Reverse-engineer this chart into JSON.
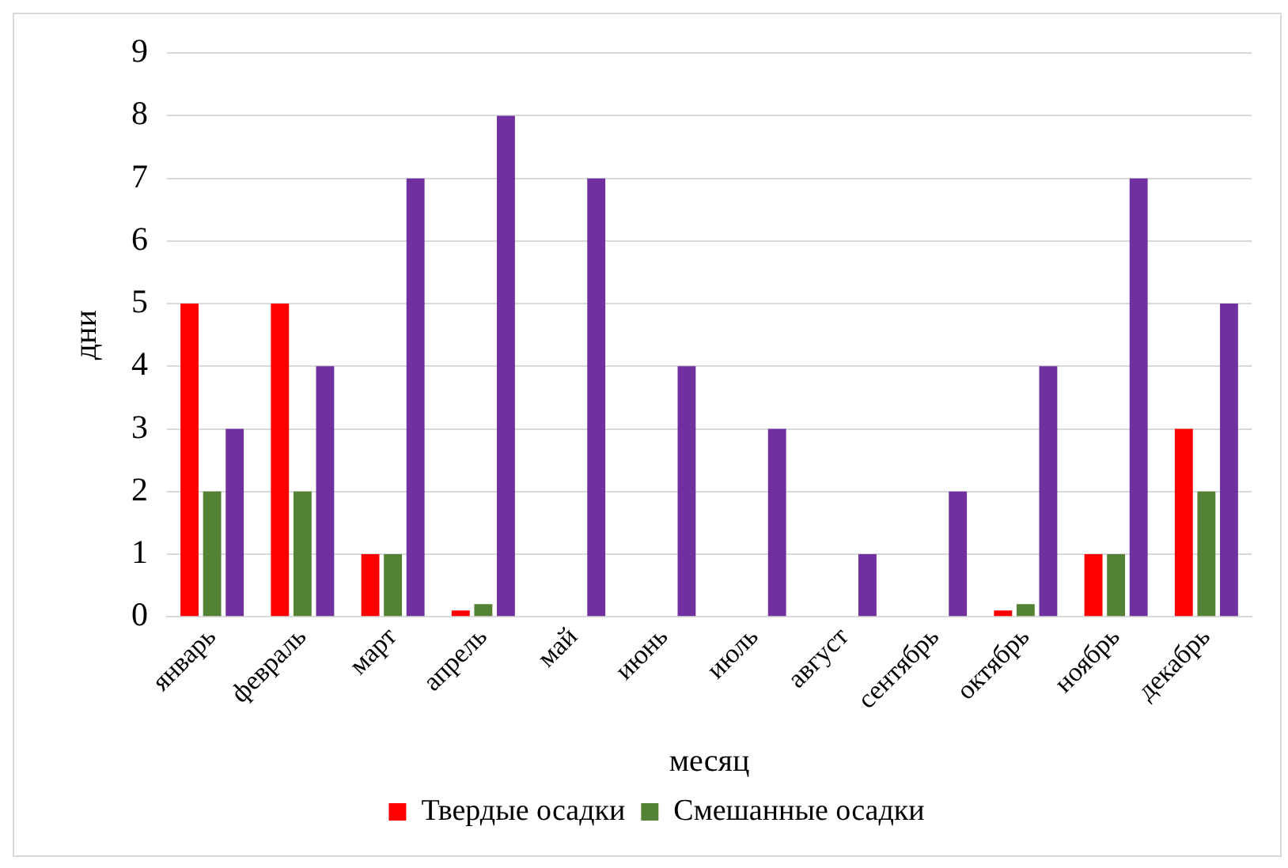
{
  "chart_data": {
    "type": "bar",
    "xlabel": "месяц",
    "ylabel": "дни",
    "categories": [
      "январь",
      "февраль",
      "март",
      "апрель",
      "май",
      "июнь",
      "июль",
      "август",
      "сентябрь",
      "октябрь",
      "ноябрь",
      "декабрь"
    ],
    "series": [
      {
        "name": "Твердые осадки",
        "color": "#ff0000",
        "values": [
          5,
          5,
          1,
          0.1,
          0,
          0,
          0,
          0,
          0,
          0.1,
          1,
          3
        ]
      },
      {
        "name": "Смешанные осадки",
        "color": "#548235",
        "values": [
          2,
          2,
          1,
          0.2,
          0,
          0,
          0,
          0,
          0,
          0.2,
          1,
          2
        ]
      },
      {
        "color": "#7030a0",
        "values": [
          3,
          4,
          7,
          8,
          7,
          4,
          3,
          1,
          2,
          4,
          7,
          5
        ]
      }
    ],
    "ylim": [
      0,
      9
    ],
    "yticks": [
      0,
      1,
      2,
      3,
      4,
      5,
      6,
      7,
      8,
      9
    ],
    "grid": "y",
    "legend": "bottom"
  }
}
